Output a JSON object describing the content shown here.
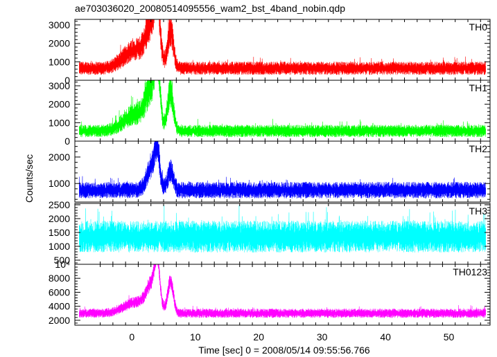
{
  "chart_data": {
    "type": "line",
    "title": "ae703036020_20080514095556_wam2_bst_4band_nobin.qdp",
    "xlabel": "Time [sec] 0 = 2008/05/14 09:55:56.766",
    "ylabel": "Counts/sec",
    "xlim": [
      -9,
      56.5
    ],
    "xticks_major": [
      0,
      10,
      20,
      30,
      40,
      50
    ],
    "grid": false,
    "panels": [
      {
        "name": "TH0",
        "color": "#ff0000",
        "ylim": [
          0,
          3300
        ],
        "yticks": [
          0,
          1000,
          2000,
          3000
        ],
        "yticklabels": [
          "0",
          "1000",
          "2000",
          "3000"
        ],
        "baseline": 650,
        "noise": 300,
        "features": [
          {
            "t": 0.5,
            "peak": 1000,
            "width": 1.8
          },
          {
            "t": 3.2,
            "peak": 2200,
            "width": 0.9
          },
          {
            "t": 4.0,
            "peak": 2700,
            "width": 0.4
          },
          {
            "t": 6.1,
            "peak": 2000,
            "width": 0.45
          }
        ]
      },
      {
        "name": "TH1",
        "color": "#00ff00",
        "ylim": [
          0,
          3300
        ],
        "yticks": [
          0,
          1000,
          2000,
          3000
        ],
        "yticklabels": [
          "0",
          "1000",
          "2000",
          "3000"
        ],
        "baseline": 550,
        "noise": 280,
        "features": [
          {
            "t": 0.5,
            "peak": 900,
            "width": 1.8
          },
          {
            "t": 3.2,
            "peak": 2100,
            "width": 0.9
          },
          {
            "t": 4.0,
            "peak": 2600,
            "width": 0.4
          },
          {
            "t": 6.1,
            "peak": 2200,
            "width": 0.45
          }
        ]
      },
      {
        "name": "TH2",
        "color": "#0000ff",
        "ylim": [
          300,
          2600
        ],
        "yticks": [
          1000,
          2000
        ],
        "yticklabels": [
          "1000",
          "2000"
        ],
        "baseline": 750,
        "noise": 260,
        "features": [
          {
            "t": 3.2,
            "peak": 900,
            "width": 0.8
          },
          {
            "t": 4.0,
            "peak": 1200,
            "width": 0.35
          },
          {
            "t": 6.1,
            "peak": 700,
            "width": 0.45
          }
        ]
      },
      {
        "name": "TH3",
        "color": "#00ffff",
        "ylim": [
          350,
          2550
        ],
        "yticks": [
          500,
          1000,
          1500,
          2000,
          2500
        ],
        "yticklabels": [
          "500",
          "1000",
          "1500",
          "2000",
          "2500"
        ],
        "baseline": 1350,
        "noise": 480,
        "features": []
      },
      {
        "name": "TH0123",
        "color": "#ff00ff",
        "ylim": [
          1300,
          10000
        ],
        "yticks": [
          2000,
          4000,
          6000,
          8000,
          10000
        ],
        "yticklabels": [
          "2000",
          "4000",
          "6000",
          "8000",
          "10⁴"
        ],
        "baseline": 3000,
        "noise": 550,
        "features": [
          {
            "t": 0.5,
            "peak": 1500,
            "width": 1.8
          },
          {
            "t": 3.2,
            "peak": 3800,
            "width": 0.9
          },
          {
            "t": 4.0,
            "peak": 5500,
            "width": 0.4
          },
          {
            "t": 6.1,
            "peak": 4500,
            "width": 0.45
          }
        ]
      }
    ]
  }
}
